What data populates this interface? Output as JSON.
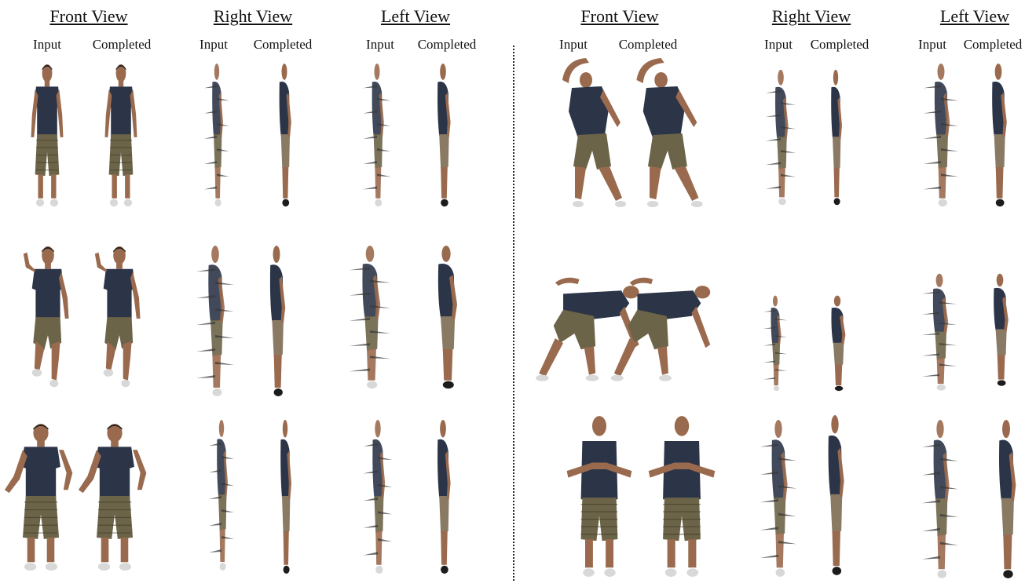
{
  "colors": {
    "shirt": "#2c3548",
    "shorts": "#6b6448",
    "skin": "#9a6a4e",
    "shoe": "#d8d8d8",
    "hair": "#222222",
    "shadow": "#1c1c1c"
  },
  "left_panel": {
    "views": [
      {
        "title": "Front View",
        "input_label": "Input",
        "completed_label": "Completed"
      },
      {
        "title": "Right View",
        "input_label": "Input",
        "completed_label": "Completed"
      },
      {
        "title": "Left View",
        "input_label": "Input",
        "completed_label": "Completed"
      }
    ]
  },
  "right_panel": {
    "views": [
      {
        "title": "Front View",
        "input_label": "Input",
        "completed_label": "Completed"
      },
      {
        "title": "Right View",
        "input_label": "Input",
        "completed_label": "Completed"
      },
      {
        "title": "Left View",
        "input_label": "Input",
        "completed_label": "Completed"
      }
    ]
  }
}
